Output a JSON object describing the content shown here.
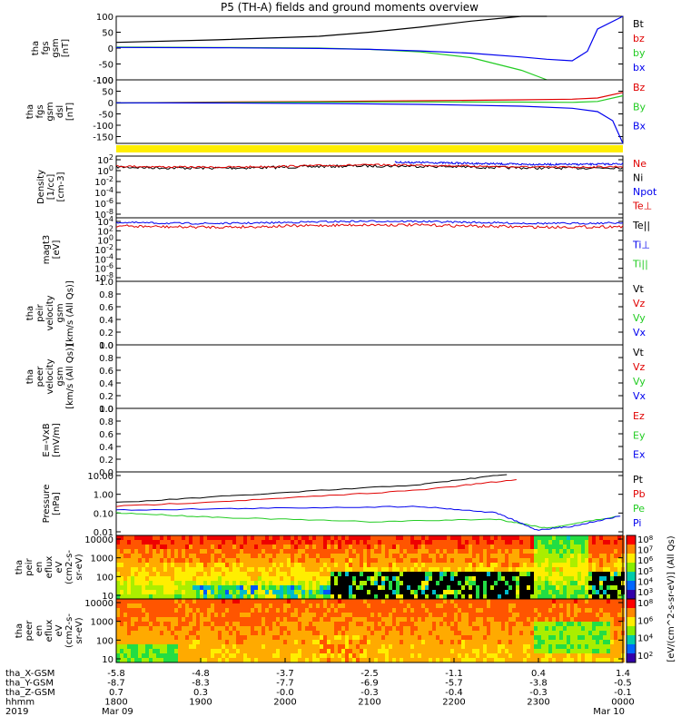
{
  "title": "P5 (TH-A) fields and ground moments overview",
  "colors": {
    "black": "#000000",
    "red": "#e00000",
    "green": "#22cc22",
    "blue": "#0000ee",
    "yellow": "#ffee00"
  },
  "chart_data": [
    {
      "id": "fgs",
      "type": "line",
      "ylabel_lines": [
        "tha",
        "fgs",
        "gsm",
        "[nT]"
      ],
      "ylim": [
        -100,
        100
      ],
      "yticks": [
        "100",
        "50",
        "0",
        "-50",
        "-100"
      ],
      "legend": [
        {
          "name": "Bt",
          "color": "#000000"
        },
        {
          "name": "bz",
          "color": "#e00000"
        },
        {
          "name": "by",
          "color": "#22cc22"
        },
        {
          "name": "bx",
          "color": "#0000ee"
        }
      ],
      "series": [
        {
          "name": "Bt",
          "x": [
            0,
            0.2,
            0.4,
            0.5,
            0.6,
            0.7,
            0.8,
            0.85
          ],
          "y": [
            18,
            26,
            37,
            50,
            66,
            85,
            100,
            110
          ]
        },
        {
          "name": "by",
          "x": [
            0,
            0.2,
            0.4,
            0.5,
            0.6,
            0.7,
            0.8,
            0.85
          ],
          "y": [
            3,
            2,
            0,
            -4,
            -12,
            -30,
            -70,
            -105
          ]
        },
        {
          "name": "bx",
          "x": [
            0,
            0.2,
            0.4,
            0.5,
            0.6,
            0.7,
            0.8,
            0.85,
            0.9,
            0.93,
            0.95,
            1.0
          ],
          "y": [
            2,
            1,
            -1,
            -4,
            -9,
            -16,
            -28,
            -35,
            -40,
            -10,
            60,
            110
          ]
        }
      ]
    },
    {
      "id": "fgs-dsl",
      "type": "line",
      "ylabel_lines": [
        "tha",
        "fgs",
        "gsm",
        "dsl",
        "[nT]"
      ],
      "ylim": [
        -180,
        100
      ],
      "yticks": [
        "100",
        "50",
        "0",
        "-50",
        "-100",
        "-150"
      ],
      "legend": [
        {
          "name": "Bz",
          "color": "#e00000"
        },
        {
          "name": "By",
          "color": "#22cc22"
        },
        {
          "name": "Bx",
          "color": "#0000ee"
        }
      ],
      "series": [
        {
          "name": "Bz",
          "x": [
            0,
            0.2,
            0.4,
            0.6,
            0.8,
            0.9,
            0.95,
            1.0
          ],
          "y": [
            -2,
            2,
            5,
            8,
            12,
            15,
            20,
            45
          ]
        },
        {
          "name": "By",
          "x": [
            0,
            0.2,
            0.4,
            0.6,
            0.8,
            0.9,
            0.95,
            1.0
          ],
          "y": [
            -2,
            0,
            2,
            3,
            2,
            1,
            5,
            30
          ]
        },
        {
          "name": "Bx",
          "x": [
            0,
            0.2,
            0.4,
            0.6,
            0.8,
            0.9,
            0.95,
            0.98,
            1.0
          ],
          "y": [
            -1,
            -2,
            -4,
            -8,
            -16,
            -25,
            -40,
            -80,
            -180
          ]
        }
      ]
    },
    {
      "id": "density",
      "type": "line",
      "ylabel_lines": [
        "Density",
        "[1/cc]",
        "[cm-3]"
      ],
      "yticks": [
        "10^2",
        "10^0",
        "10^-2",
        "10^-4",
        "10^-6",
        "10^-8"
      ],
      "legend": [
        {
          "name": "Ne",
          "color": "#e00000"
        },
        {
          "name": "Ni",
          "color": "#000000"
        },
        {
          "name": "Npot",
          "color": "#0000ee"
        },
        {
          "name": "Te⊥",
          "color": "#e00000"
        }
      ]
    },
    {
      "id": "temp",
      "type": "line",
      "ylabel_lines": [
        "magt3",
        "[eV]"
      ],
      "yticks": [
        "10^4",
        "10^2",
        "10^0",
        "10^-2",
        "10^-4",
        "10^-6",
        "10^-8"
      ],
      "legend": [
        {
          "name": "Te||",
          "color": "#000000"
        },
        {
          "name": "Ti⊥",
          "color": "#0000ee"
        },
        {
          "name": "Ti||",
          "color": "#22cc22"
        }
      ]
    },
    {
      "id": "peir-vel",
      "type": "line",
      "ylabel_lines": [
        "tha",
        "peir",
        "velocity",
        "gsm",
        "[km/s (All Qs)]"
      ],
      "ylim": [
        0,
        1
      ],
      "yticks": [
        "1.0",
        "0.8",
        "0.6",
        "0.4",
        "0.2",
        "0.0"
      ],
      "legend": [
        {
          "name": "Vt",
          "color": "#000000"
        },
        {
          "name": "Vz",
          "color": "#e00000"
        },
        {
          "name": "Vy",
          "color": "#22cc22"
        },
        {
          "name": "Vx",
          "color": "#0000ee"
        }
      ]
    },
    {
      "id": "peer-vel",
      "type": "line",
      "ylabel_lines": [
        "tha",
        "peer",
        "velocity",
        "gsm",
        "[km/s (All Qs)]"
      ],
      "ylim": [
        0,
        1
      ],
      "yticks": [
        "1.0",
        "0.8",
        "0.6",
        "0.4",
        "0.2",
        "0.0"
      ],
      "legend": [
        {
          "name": "Vt",
          "color": "#000000"
        },
        {
          "name": "Vz",
          "color": "#e00000"
        },
        {
          "name": "Vy",
          "color": "#22cc22"
        },
        {
          "name": "Vx",
          "color": "#0000ee"
        }
      ]
    },
    {
      "id": "efield",
      "type": "line",
      "ylabel_lines": [
        "E=-VxB",
        "[mV/m]"
      ],
      "ylim": [
        0,
        1
      ],
      "yticks": [
        "1.0",
        "0.8",
        "0.6",
        "0.4",
        "0.2",
        "0.0"
      ],
      "legend": [
        {
          "name": "Ez",
          "color": "#e00000"
        },
        {
          "name": "Ey",
          "color": "#22cc22"
        },
        {
          "name": "Ex",
          "color": "#0000ee"
        }
      ]
    },
    {
      "id": "pressure",
      "type": "line",
      "ylabel_lines": [
        "Pressure",
        "[nPa]"
      ],
      "yticks": [
        "10.00",
        "1.00",
        "0.10",
        "0.01"
      ],
      "legend": [
        {
          "name": "Pt",
          "color": "#000000"
        },
        {
          "name": "Pb",
          "color": "#e00000"
        },
        {
          "name": "Pe",
          "color": "#22cc22"
        },
        {
          "name": "Pi",
          "color": "#0000ee"
        }
      ]
    },
    {
      "id": "peir-spec",
      "type": "heatmap",
      "ylabel_lines": [
        "tha",
        "peir",
        "en",
        "eflux",
        "eV",
        "(cm2-s-",
        "sr-eV)"
      ],
      "yticks": [
        "10000",
        "1000",
        "100",
        "10"
      ],
      "colorbar_label": "[eV/(cm^2-s-sr-eV)] (All Qs)",
      "colorbar_ticks": [
        "10^8",
        "10^7",
        "10^6",
        "10^5",
        "10^4",
        "10^3"
      ]
    },
    {
      "id": "peer-spec",
      "type": "heatmap",
      "ylabel_lines": [
        "tha",
        "peer",
        "en",
        "eflux",
        "eV",
        "(cm2-s-",
        "sr-eV)"
      ],
      "yticks": [
        "10000",
        "1000",
        "100",
        "10"
      ],
      "colorbar_label": "[eV/(cm^2-s-sr-eV)] (All Qs)",
      "colorbar_ticks": [
        "10^8",
        "10^6",
        "10^4",
        "10^2"
      ]
    }
  ],
  "xaxis": {
    "rows": [
      {
        "label": "tha_X-GSM",
        "values": [
          "-5.8",
          "-4.8",
          "-3.7",
          "-2.5",
          "-1.1",
          "0.4",
          "1.4"
        ]
      },
      {
        "label": "tha_Y-GSM",
        "values": [
          "-8.7",
          "-8.3",
          "-7.7",
          "-6.9",
          "-5.7",
          "-3.8",
          "-0.5"
        ]
      },
      {
        "label": "tha_Z-GSM",
        "values": [
          "0.7",
          "0.3",
          "-0.0",
          "-0.3",
          "-0.4",
          "-0.3",
          "-0.1"
        ]
      },
      {
        "label": "hhmm",
        "values": [
          "1800",
          "1900",
          "2000",
          "2100",
          "2200",
          "2300",
          "0000"
        ]
      },
      {
        "label": "2019",
        "values": [
          "Mar 09",
          "",
          "",
          "",
          "",
          "",
          "Mar 10"
        ]
      }
    ]
  }
}
